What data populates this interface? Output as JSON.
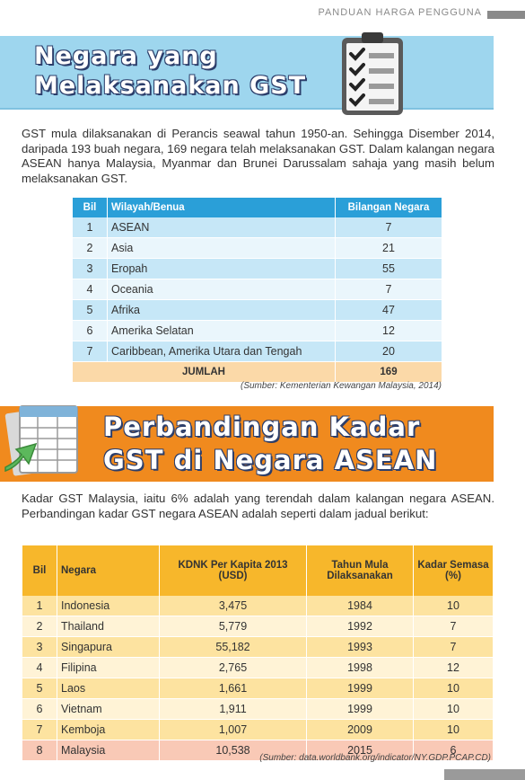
{
  "header": {
    "title": "PANDUAN HARGA PENGGUNA"
  },
  "section1": {
    "title_line1": "Negara yang",
    "title_line2": "Melaksanakan GST",
    "paragraph": "GST mula dilaksanakan di Perancis seawal tahun 1950-an. Sehingga Disember 2014, daripada 193 buah negara, 169 negara telah melaksanakan GST. Dalam kalangan negara ASEAN hanya Malaysia, Myanmar dan Brunei Darussalam sahaja yang masih belum melaksanakan GST.",
    "table": {
      "headers": [
        "Bil",
        "Wilayah/Benua",
        "Bilangan Negara"
      ],
      "rows": [
        [
          "1",
          "ASEAN",
          "7"
        ],
        [
          "2",
          "Asia",
          "21"
        ],
        [
          "3",
          "Eropah",
          "55"
        ],
        [
          "4",
          "Oceania",
          "7"
        ],
        [
          "5",
          "Afrika",
          "47"
        ],
        [
          "6",
          "Amerika Selatan",
          "12"
        ],
        [
          "7",
          "Caribbean, Amerika Utara dan Tengah",
          "20"
        ]
      ],
      "total_label": "JUMLAH",
      "total_value": "169"
    },
    "source": "(Sumber: Kementerian Kewangan Malaysia,  2014)"
  },
  "section2": {
    "title_line1": "Perbandingan Kadar",
    "title_line2": "GST di Negara ASEAN",
    "paragraph": "Kadar GST Malaysia, iaitu 6% adalah yang terendah dalam kalangan negara ASEAN. Perbandingan kadar GST negara ASEAN adalah seperti dalam jadual berikut:",
    "table": {
      "headers": [
        "Bil",
        "Negara",
        "KDNK Per Kapita 2013 (USD)",
        "Tahun Mula Dilaksanakan",
        "Kadar Semasa (%)"
      ],
      "rows": [
        [
          "1",
          "Indonesia",
          "3,475",
          "1984",
          "10"
        ],
        [
          "2",
          "Thailand",
          "5,779",
          "1992",
          "7"
        ],
        [
          "3",
          "Singapura",
          "55,182",
          "1993",
          "7"
        ],
        [
          "4",
          "Filipina",
          "2,765",
          "1998",
          "12"
        ],
        [
          "5",
          "Laos",
          "1,661",
          "1999",
          "10"
        ],
        [
          "6",
          "Vietnam",
          "1,911",
          "1999",
          "10"
        ],
        [
          "7",
          "Kemboja",
          "1,007",
          "2009",
          "10"
        ],
        [
          "8",
          "Malaysia",
          "10,538",
          "2015",
          "6"
        ]
      ]
    },
    "source": "(Sumber: data.worldbank.org/indicator/NY.GDP.PCAP.CD)"
  },
  "icons": [
    "checklist-icon",
    "spreadsheet-icon"
  ],
  "colors": {
    "blue_banner": "#9ed6ee",
    "orange_banner": "#f08a1e",
    "table1_header": "#2a9fd8",
    "table2_header": "#f7b72b"
  }
}
